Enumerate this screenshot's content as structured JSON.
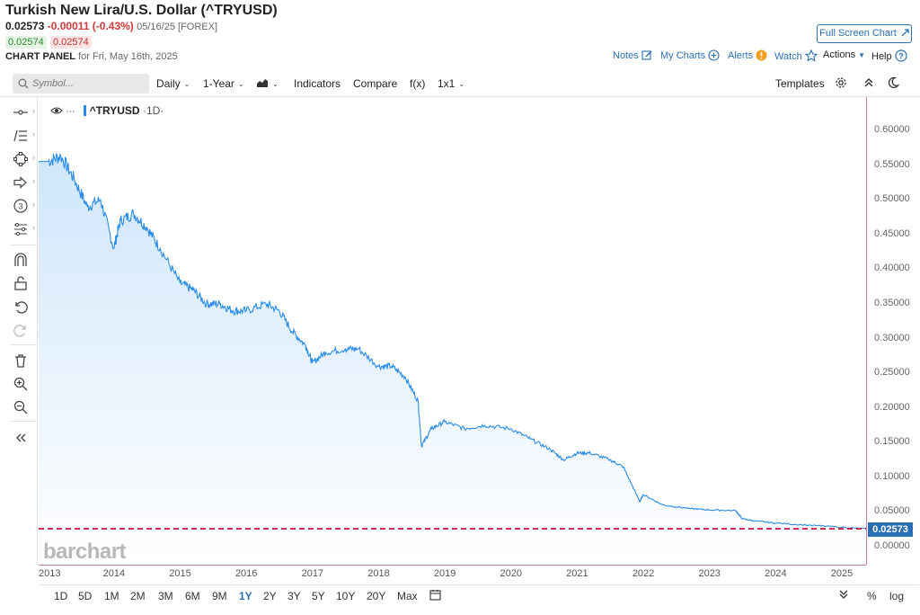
{
  "header": {
    "title": "Turkish New Lira/U.S. Dollar (^TRYUSD)",
    "last": "0.02573",
    "change": "-0.00011 (-0.43%)",
    "date_meta": "05/16/25 [FOREX]",
    "bid": "0.02574",
    "ask": "0.02574",
    "panel_label": "CHART PANEL",
    "panel_date": "for Fri, May 16th, 2025"
  },
  "top_links": {
    "fullscreen": "Full Screen Chart",
    "notes": "Notes",
    "my_charts": "My Charts",
    "alerts": "Alerts",
    "watch": "Watch",
    "actions": "Actions",
    "help": "Help"
  },
  "toolbar": {
    "symbol_placeholder": "Symbol...",
    "interval": "Daily",
    "range": "1-Year",
    "indicators": "Indicators",
    "compare": "Compare",
    "fx": "f(x)",
    "layout": "1x1",
    "templates": "Templates"
  },
  "series_label": {
    "name": "^TRYUSD",
    "interval": "1D"
  },
  "watermark": "barchart",
  "price_axis": {
    "ticks": [
      "0.60000",
      "0.55000",
      "0.50000",
      "0.45000",
      "0.40000",
      "0.35000",
      "0.30000",
      "0.25000",
      "0.20000",
      "0.15000",
      "0.10000",
      "0.05000",
      "0.00000"
    ],
    "last_label": "0.02573"
  },
  "time_axis": {
    "ticks": [
      "2013",
      "2014",
      "2015",
      "2016",
      "2017",
      "2018",
      "2019",
      "2020",
      "2021",
      "2022",
      "2023",
      "2024",
      "2025"
    ]
  },
  "range_buttons": [
    "1D",
    "5D",
    "1M",
    "2M",
    "3M",
    "6M",
    "9M",
    "1Y",
    "2Y",
    "3Y",
    "5Y",
    "10Y",
    "20Y",
    "Max"
  ],
  "range_active": "1Y",
  "bottom_right": {
    "percent": "%",
    "log": "log"
  },
  "colors": {
    "line": "#2a8ce8",
    "fill_top": "#d3e8fb",
    "last_price_line": "#d0103a",
    "accent": "#2a6fb2"
  },
  "chart_data": {
    "type": "area",
    "x": [
      2013.0,
      2013.2,
      2013.4,
      2013.6,
      2013.8,
      2014.0,
      2014.1,
      2014.3,
      2014.5,
      2014.7,
      2015.0,
      2015.2,
      2015.4,
      2015.6,
      2015.8,
      2016.0,
      2016.3,
      2016.5,
      2016.7,
      2016.9,
      2017.0,
      2017.2,
      2017.5,
      2017.7,
      2018.0,
      2018.2,
      2018.4,
      2018.6,
      2018.65,
      2018.8,
      2019.0,
      2019.3,
      2019.6,
      2020.0,
      2020.3,
      2020.6,
      2020.8,
      2021.0,
      2021.2,
      2021.5,
      2021.7,
      2021.95,
      2022.0,
      2022.3,
      2022.7,
      2023.0,
      2023.4,
      2023.5,
      2023.7,
      2024.0,
      2024.5,
      2025.0,
      2025.37
    ],
    "y": [
      0.555,
      0.563,
      0.53,
      0.49,
      0.5,
      0.43,
      0.47,
      0.48,
      0.46,
      0.43,
      0.38,
      0.37,
      0.35,
      0.35,
      0.34,
      0.34,
      0.35,
      0.34,
      0.31,
      0.29,
      0.265,
      0.28,
      0.285,
      0.285,
      0.26,
      0.26,
      0.245,
      0.21,
      0.145,
      0.17,
      0.18,
      0.17,
      0.175,
      0.17,
      0.155,
      0.14,
      0.125,
      0.135,
      0.135,
      0.125,
      0.115,
      0.065,
      0.075,
      0.06,
      0.055,
      0.053,
      0.052,
      0.04,
      0.037,
      0.034,
      0.031,
      0.028,
      0.02573
    ],
    "xlim": [
      2013.0,
      2025.37
    ],
    "ylim": [
      -0.01,
      0.62
    ],
    "last_value": 0.02573,
    "grid": false
  }
}
